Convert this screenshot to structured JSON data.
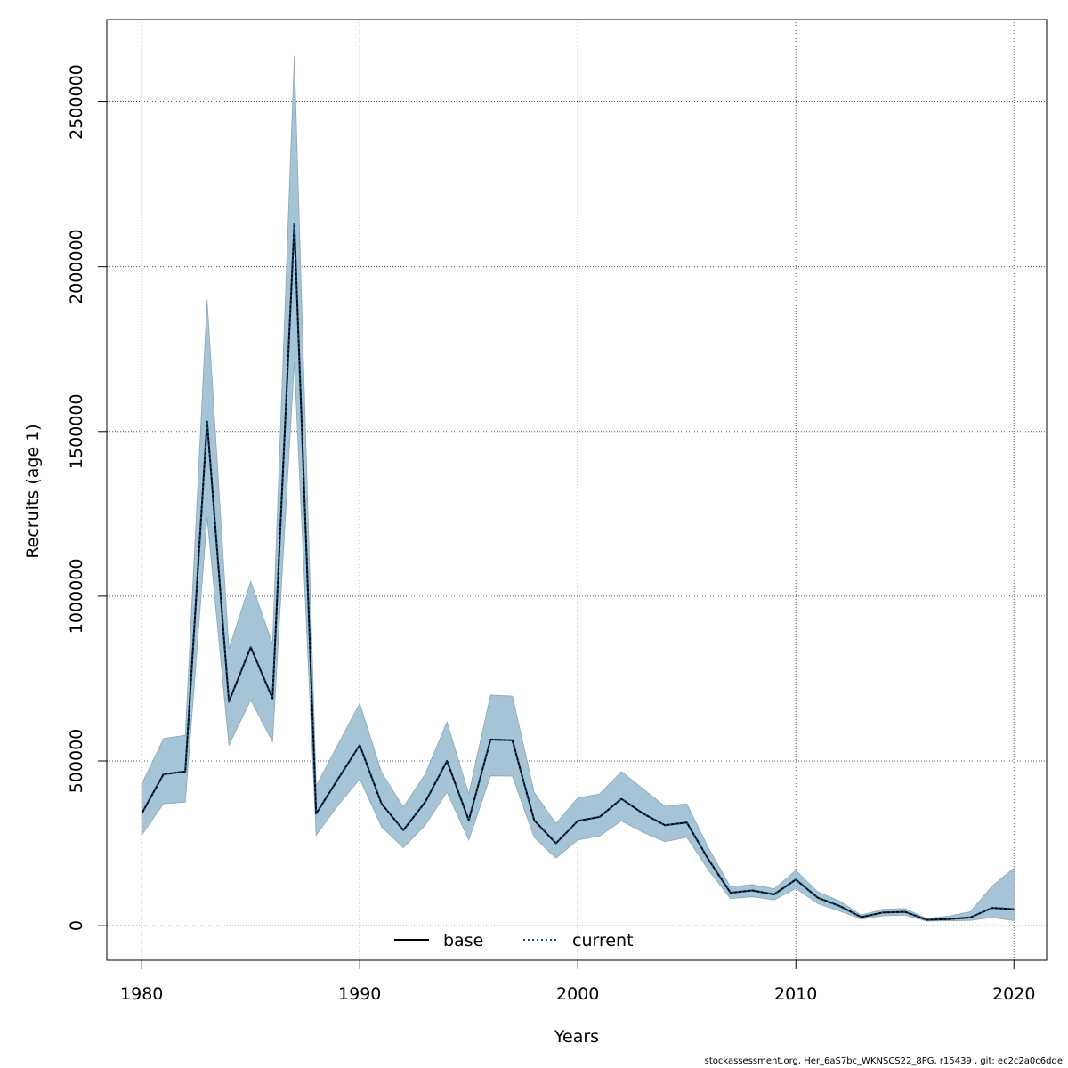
{
  "chart_data": {
    "type": "line",
    "xlabel": "Years",
    "ylabel": "Recruits (age 1)",
    "xlim": [
      1978.4,
      2021.5
    ],
    "ylim": [
      -105000,
      2750000
    ],
    "x_ticks": [
      1980,
      1990,
      2000,
      2010,
      2020
    ],
    "y_ticks": [
      0,
      500000,
      1000000,
      1500000,
      2000000,
      2500000
    ],
    "x_tick_labels": [
      "1980",
      "1990",
      "2000",
      "2010",
      "2020"
    ],
    "y_tick_labels": [
      "0",
      "500000",
      "1000000",
      "1500000",
      "2000000",
      "2500000"
    ],
    "grid": true,
    "legend_position": "bottom-center",
    "colors": {
      "band": "#a5c4d5",
      "band_edge": "#8aa6b6",
      "base": "#000000",
      "current": "#0a4f8c",
      "grid": "#555555"
    },
    "x": [
      1980,
      1981,
      1982,
      1983,
      1984,
      1985,
      1986,
      1987,
      1988,
      1989,
      1990,
      1991,
      1992,
      1993,
      1994,
      1995,
      1996,
      1997,
      1998,
      1999,
      2000,
      2001,
      2002,
      2003,
      2004,
      2005,
      2006,
      2007,
      2008,
      2009,
      2010,
      2011,
      2012,
      2013,
      2014,
      2015,
      2016,
      2017,
      2018,
      2019,
      2020
    ],
    "series": [
      {
        "name": "base",
        "style": "solid",
        "values": [
          340000,
          460000,
          468000,
          1530000,
          680000,
          845000,
          690000,
          2130000,
          340000,
          445000,
          548000,
          370000,
          290000,
          375000,
          500000,
          320000,
          565000,
          563000,
          320000,
          250000,
          318000,
          330000,
          385000,
          340000,
          305000,
          313000,
          200000,
          100000,
          107000,
          95000,
          140000,
          85000,
          60000,
          26000,
          40000,
          42000,
          18000,
          20000,
          25000,
          54000,
          50000
        ]
      },
      {
        "name": "current",
        "style": "dotted",
        "values": [
          340000,
          460000,
          468000,
          1530000,
          680000,
          845000,
          690000,
          2130000,
          340000,
          445000,
          548000,
          370000,
          290000,
          375000,
          500000,
          320000,
          565000,
          563000,
          320000,
          250000,
          318000,
          330000,
          385000,
          340000,
          305000,
          313000,
          200000,
          100000,
          107000,
          95000,
          140000,
          85000,
          60000,
          26000,
          40000,
          42000,
          18000,
          20000,
          25000,
          54000,
          50000
        ]
      }
    ],
    "ci_upper": [
      430000,
      568000,
      578000,
      1900000,
      840000,
      1045000,
      855000,
      2640000,
      425000,
      550000,
      675000,
      465000,
      360000,
      460000,
      618000,
      400000,
      700000,
      697000,
      405000,
      310000,
      388000,
      400000,
      468000,
      415000,
      362000,
      370000,
      235000,
      118000,
      125000,
      112000,
      168000,
      103000,
      75000,
      32000,
      50000,
      52000,
      22000,
      29000,
      42000,
      120000,
      175000
    ],
    "ci_lower": [
      275000,
      370000,
      375000,
      1240000,
      548000,
      685000,
      558000,
      1710000,
      275000,
      365000,
      445000,
      300000,
      237000,
      305000,
      405000,
      260000,
      455000,
      454000,
      268000,
      205000,
      260000,
      272000,
      318000,
      283000,
      255000,
      268000,
      168000,
      82000,
      88000,
      78000,
      113000,
      67000,
      45000,
      20000,
      30000,
      32000,
      14000,
      15000,
      16000,
      25000,
      15000
    ]
  },
  "footer_text": "stockassessment.org, Her_6aS7bc_WKNSCS22_8PG, r15439 , git: ec2c2a0c6dde"
}
